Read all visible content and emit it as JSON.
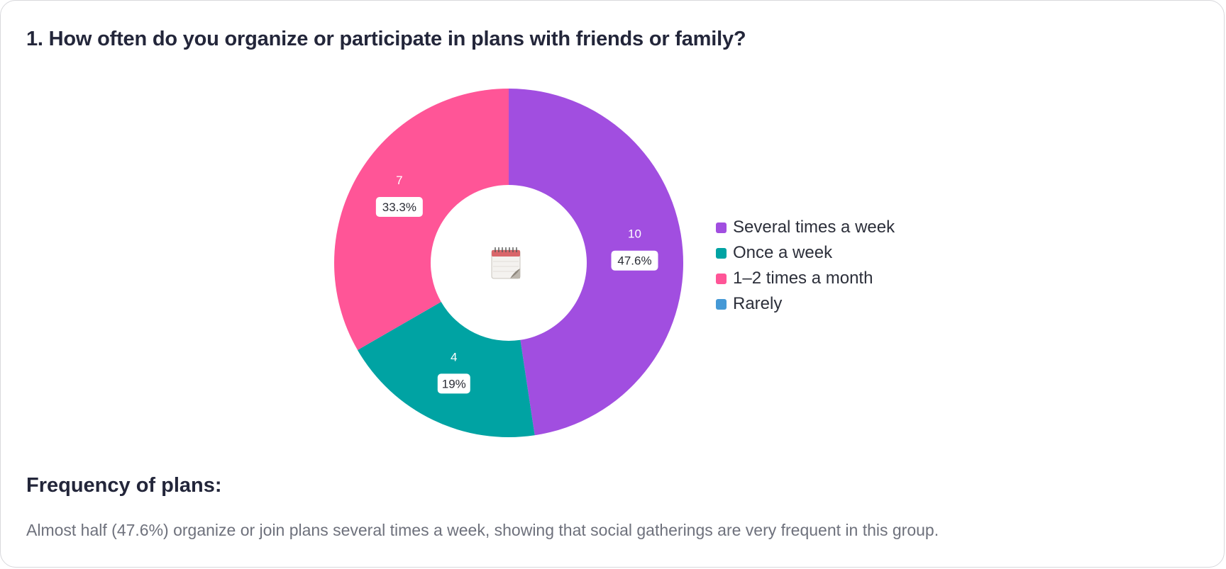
{
  "question": {
    "title": "1. How often do you organize or participate in plans with friends or family?"
  },
  "chart_data": {
    "type": "pie",
    "variant": "donut",
    "title": "1. How often do you organize or participate in plans with friends or family?",
    "categories": [
      "Several times a week",
      "Once a week",
      "1–2 times a month",
      "Rarely"
    ],
    "values": [
      10,
      4,
      7,
      0
    ],
    "percent_labels": [
      "47.6%",
      "19%",
      "33.3%",
      "0%"
    ],
    "colors": [
      "#a14ee0",
      "#00a3a3",
      "#ff5597",
      "#4599d6"
    ],
    "legend_position": "right",
    "center_icon": "calendar-icon"
  },
  "summary": {
    "heading": "Frequency of plans:",
    "text": "Almost half (47.6%) organize or join plans several times a week, showing that social gatherings are very frequent in this group."
  }
}
